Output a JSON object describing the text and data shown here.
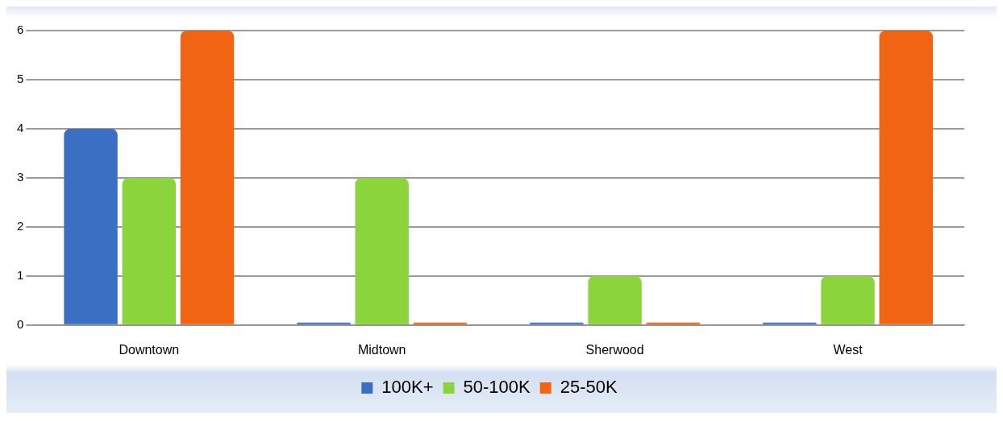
{
  "chart_data": {
    "type": "bar",
    "categories": [
      "Downtown",
      "Midtown",
      "Sherwood",
      "West"
    ],
    "series": [
      {
        "name": "100K+",
        "color": "#3a6fc4",
        "values": [
          4,
          0,
          0,
          0
        ]
      },
      {
        "name": "50-100K",
        "color": "#8cd43c",
        "values": [
          3,
          3,
          1,
          1
        ]
      },
      {
        "name": "25-50K",
        "color": "#f06414",
        "values": [
          6,
          0,
          0,
          6
        ]
      }
    ],
    "ylim": [
      0,
      6
    ],
    "yticks": [
      0,
      1,
      2,
      3,
      4,
      5,
      6
    ],
    "grid": "y",
    "legend": "bottom"
  }
}
